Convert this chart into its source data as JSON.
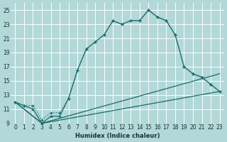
{
  "title": "",
  "xlabel": "Humidex (Indice chaleur)",
  "bg_color": "#b2d8d8",
  "grid_color": "#ffffff",
  "line_color": "#1a6b6b",
  "xlim": [
    -0.5,
    23.5
  ],
  "ylim": [
    9,
    26
  ],
  "yticks": [
    9,
    11,
    13,
    15,
    17,
    19,
    21,
    23,
    25
  ],
  "xticks": [
    0,
    1,
    2,
    3,
    4,
    5,
    6,
    7,
    8,
    9,
    10,
    11,
    12,
    13,
    14,
    15,
    16,
    17,
    18,
    19,
    20,
    21,
    22,
    23
  ],
  "line1_x": [
    0,
    1,
    2,
    3,
    4,
    5,
    6,
    7,
    8,
    9,
    10,
    11,
    12,
    13,
    14,
    15,
    16,
    17,
    18,
    19,
    20,
    21,
    22,
    23
  ],
  "line1_y": [
    12.0,
    11.5,
    11.5,
    9.5,
    10.5,
    10.5,
    12.5,
    16.5,
    19.5,
    20.5,
    21.5,
    23.5,
    23.0,
    23.5,
    23.5,
    25.0,
    24.0,
    23.5,
    21.5,
    17.0,
    16.0,
    15.5,
    14.5,
    13.5
  ],
  "line2_x": [
    0,
    1,
    2,
    3,
    4,
    5,
    6,
    7,
    8,
    9,
    10,
    11,
    12,
    13,
    14,
    15,
    16,
    17,
    18,
    19,
    20,
    21,
    22,
    23
  ],
  "line2_y": [
    12.0,
    11.5,
    11.0,
    9.0,
    10.0,
    10.0,
    12.5,
    16.5,
    19.5,
    20.5,
    21.5,
    23.5,
    23.0,
    23.5,
    23.5,
    25.0,
    24.0,
    23.5,
    21.5,
    17.0,
    16.0,
    15.5,
    14.5,
    13.5
  ],
  "line3_x": [
    0,
    3,
    23
  ],
  "line3_y": [
    12.0,
    9.0,
    13.5
  ],
  "line4_x": [
    0,
    3,
    23
  ],
  "line4_y": [
    12.0,
    9.0,
    16.0
  ]
}
